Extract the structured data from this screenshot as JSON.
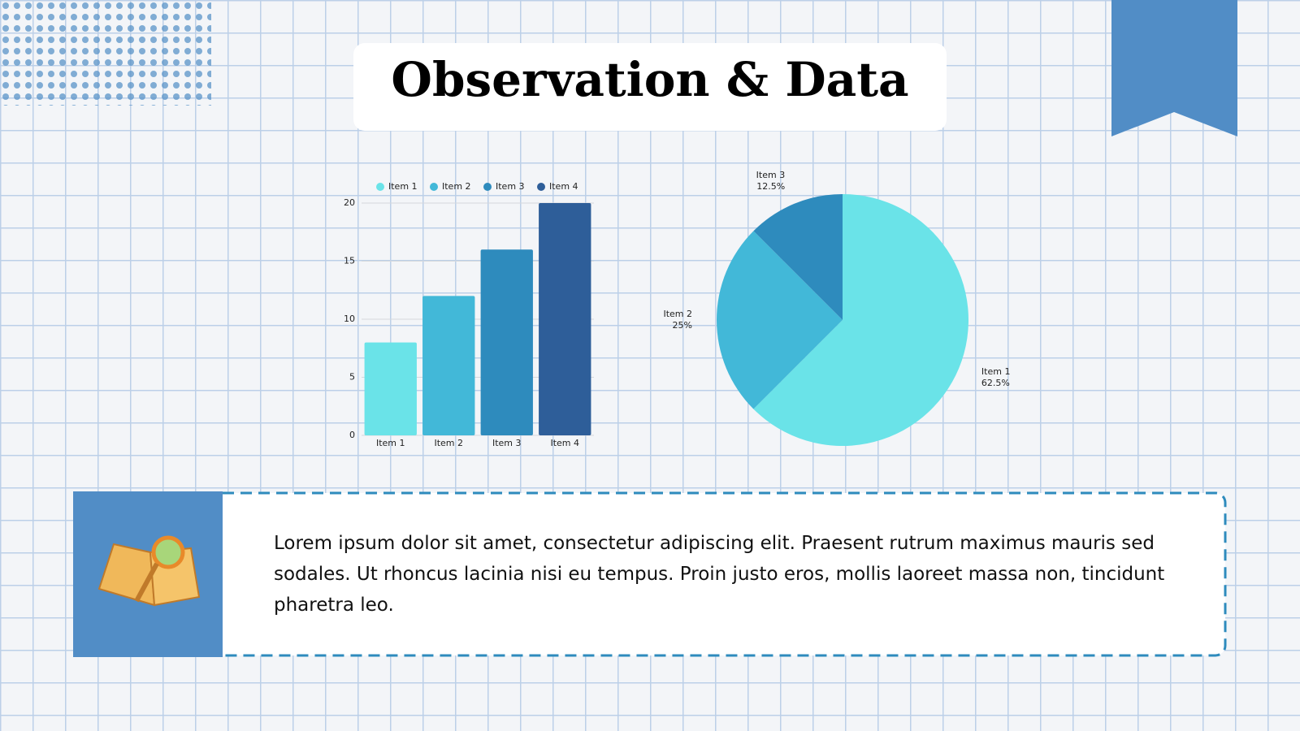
{
  "title": "Observation & Data",
  "text": "Lorem ipsum dolor sit amet, consectetur adipiscing elit. Praesent rutrum maximus mauris sed sodales. Ut rhoncus lacinia nisi eu tempus. Proin justo eros, mollis laoreet massa non, tincidunt pharetra leo.",
  "chart_data": [
    {
      "type": "bar",
      "categories": [
        "Item 1",
        "Item 2",
        "Item 3",
        "Item 4"
      ],
      "values": [
        8,
        12,
        16,
        20
      ],
      "colors": [
        "#6ae3e8",
        "#42b8d8",
        "#2e8bbd",
        "#2e5e99"
      ],
      "ylim": [
        0,
        20
      ],
      "yticks": [
        0,
        5,
        10,
        15,
        20
      ],
      "grid": true,
      "legend": "top"
    },
    {
      "type": "pie",
      "categories": [
        "Item 1",
        "Item 2",
        "Item 3"
      ],
      "values": [
        62.5,
        25,
        12.5
      ],
      "value_labels": [
        "62.5%",
        "25%",
        "12.5%"
      ],
      "colors": [
        "#6ae3e8",
        "#42b8d8",
        "#2e8bbd"
      ]
    }
  ]
}
